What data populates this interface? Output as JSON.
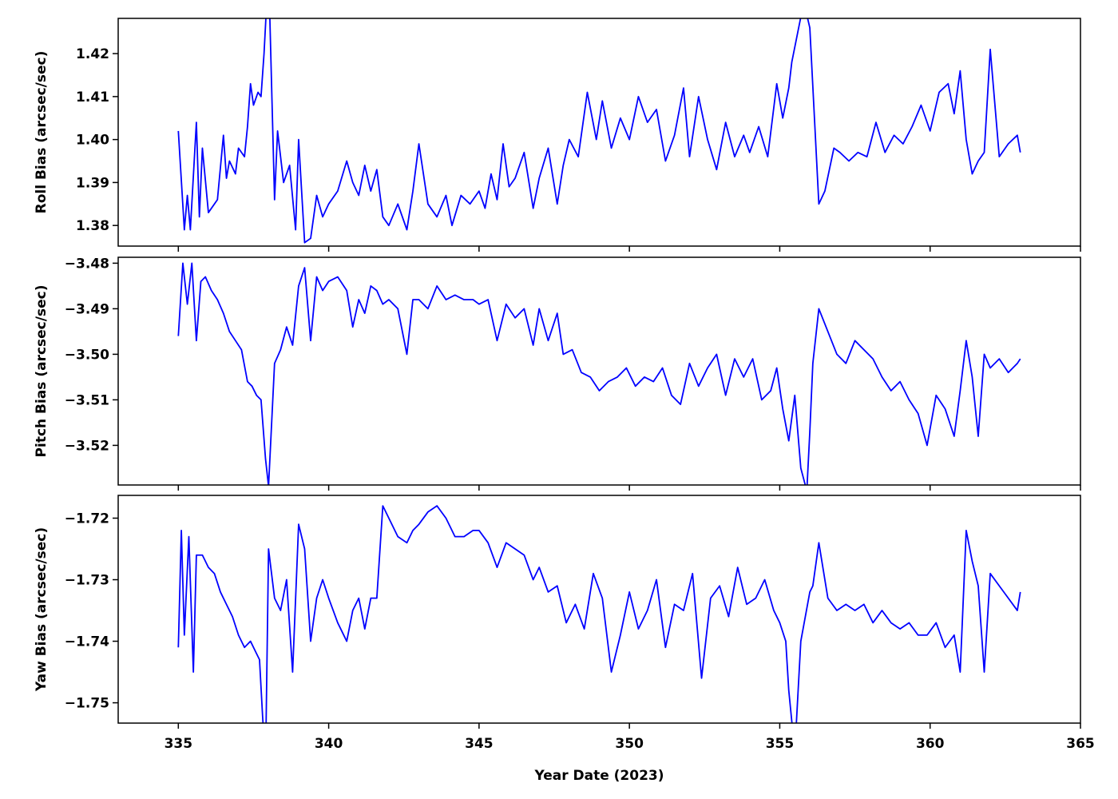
{
  "chart_data": [
    {
      "type": "line",
      "ylabel": "Roll Bias (arcsec/sec)",
      "xlim": [
        333,
        365
      ],
      "ylim": [
        1.3752,
        1.4282
      ],
      "y_ticks": [
        1.38,
        1.39,
        1.4,
        1.41,
        1.42
      ],
      "y_tick_labels": [
        "1.38",
        "1.39",
        "1.40",
        "1.41",
        "1.42"
      ],
      "series": [
        {
          "color": "#0000ff",
          "x": [
            335.0,
            335.2,
            335.3,
            335.4,
            335.6,
            335.7,
            335.8,
            336.0,
            336.3,
            336.5,
            336.6,
            336.7,
            336.9,
            337.0,
            337.2,
            337.3,
            337.4,
            337.5,
            337.65,
            337.75,
            337.85,
            338.0,
            338.2,
            338.3,
            338.5,
            338.7,
            338.9,
            339.0,
            339.2,
            339.4,
            339.6,
            339.8,
            340.0,
            340.3,
            340.6,
            340.8,
            341.0,
            341.2,
            341.4,
            341.6,
            341.8,
            342.0,
            342.3,
            342.6,
            342.8,
            343.0,
            343.3,
            343.6,
            343.9,
            344.1,
            344.4,
            344.7,
            345.0,
            345.2,
            345.4,
            345.6,
            345.8,
            346.0,
            346.2,
            346.5,
            346.8,
            347.0,
            347.3,
            347.6,
            347.8,
            348.0,
            348.3,
            348.6,
            348.9,
            349.1,
            349.4,
            349.7,
            350.0,
            350.3,
            350.6,
            350.9,
            351.2,
            351.5,
            351.8,
            352.0,
            352.3,
            352.6,
            352.9,
            353.2,
            353.5,
            353.8,
            354.0,
            354.3,
            354.6,
            354.9,
            355.1,
            355.3,
            355.4,
            355.6,
            355.8,
            356.0,
            356.3,
            356.5,
            356.8,
            357.0,
            357.3,
            357.6,
            357.9,
            358.2,
            358.5,
            358.8,
            359.1,
            359.4,
            359.7,
            360.0,
            360.3,
            360.6,
            360.8,
            361.0,
            361.2,
            361.4,
            361.6,
            361.8,
            362.0,
            362.3,
            362.6,
            362.9,
            363.0
          ],
          "y": [
            1.402,
            1.379,
            1.387,
            1.379,
            1.404,
            1.382,
            1.398,
            1.383,
            1.386,
            1.401,
            1.391,
            1.395,
            1.392,
            1.398,
            1.396,
            1.403,
            1.413,
            1.408,
            1.411,
            1.41,
            1.42,
            1.44,
            1.386,
            1.402,
            1.39,
            1.394,
            1.379,
            1.4,
            1.376,
            1.377,
            1.387,
            1.382,
            1.385,
            1.388,
            1.395,
            1.39,
            1.387,
            1.394,
            1.388,
            1.393,
            1.382,
            1.38,
            1.385,
            1.379,
            1.388,
            1.399,
            1.385,
            1.382,
            1.387,
            1.38,
            1.387,
            1.385,
            1.388,
            1.384,
            1.392,
            1.386,
            1.399,
            1.389,
            1.391,
            1.397,
            1.384,
            1.391,
            1.398,
            1.385,
            1.394,
            1.4,
            1.396,
            1.411,
            1.4,
            1.409,
            1.398,
            1.405,
            1.4,
            1.41,
            1.404,
            1.407,
            1.395,
            1.401,
            1.412,
            1.396,
            1.41,
            1.4,
            1.393,
            1.404,
            1.396,
            1.401,
            1.397,
            1.403,
            1.396,
            1.413,
            1.405,
            1.412,
            1.418,
            1.425,
            1.432,
            1.426,
            1.385,
            1.388,
            1.398,
            1.397,
            1.395,
            1.397,
            1.396,
            1.404,
            1.397,
            1.401,
            1.399,
            1.403,
            1.408,
            1.402,
            1.411,
            1.413,
            1.406,
            1.416,
            1.4,
            1.392,
            1.395,
            1.397,
            1.421,
            1.396,
            1.399,
            1.401,
            1.397
          ]
        }
      ]
    },
    {
      "type": "line",
      "ylabel": "Pitch Bias (arcsec/sec)",
      "xlim": [
        333,
        365
      ],
      "ylim": [
        -3.5287,
        -3.4787
      ],
      "y_ticks": [
        -3.52,
        -3.51,
        -3.5,
        -3.49,
        -3.48
      ],
      "y_tick_labels": [
        "−3.52",
        "−3.51",
        "−3.50",
        "−3.49",
        "−3.48"
      ],
      "series": [
        {
          "color": "#0000ff",
          "x": [
            335.0,
            335.15,
            335.3,
            335.45,
            335.6,
            335.75,
            335.9,
            336.1,
            336.3,
            336.5,
            336.7,
            336.9,
            337.1,
            337.3,
            337.45,
            337.6,
            337.75,
            337.9,
            338.0,
            338.2,
            338.4,
            338.6,
            338.8,
            339.0,
            339.2,
            339.4,
            339.6,
            339.8,
            340.0,
            340.3,
            340.6,
            340.8,
            341.0,
            341.2,
            341.4,
            341.6,
            341.8,
            342.0,
            342.3,
            342.6,
            342.8,
            343.0,
            343.3,
            343.6,
            343.9,
            344.2,
            344.5,
            344.8,
            345.0,
            345.3,
            345.6,
            345.9,
            346.2,
            346.5,
            346.8,
            347.0,
            347.3,
            347.6,
            347.8,
            348.1,
            348.4,
            348.7,
            349.0,
            349.3,
            349.6,
            349.9,
            350.2,
            350.5,
            350.8,
            351.1,
            351.4,
            351.7,
            352.0,
            352.3,
            352.6,
            352.9,
            353.2,
            353.5,
            353.8,
            354.1,
            354.4,
            354.7,
            354.9,
            355.1,
            355.3,
            355.5,
            355.7,
            355.9,
            356.0,
            356.1,
            356.3,
            356.6,
            356.9,
            357.2,
            357.5,
            357.8,
            358.1,
            358.4,
            358.7,
            359.0,
            359.3,
            359.6,
            359.9,
            360.2,
            360.5,
            360.8,
            361.0,
            361.2,
            361.4,
            361.6,
            361.8,
            362.0,
            362.3,
            362.6,
            362.9,
            363.0
          ],
          "y": [
            -3.496,
            -3.48,
            -3.489,
            -3.48,
            -3.497,
            -3.484,
            -3.483,
            -3.486,
            -3.488,
            -3.491,
            -3.495,
            -3.497,
            -3.499,
            -3.506,
            -3.507,
            -3.509,
            -3.51,
            -3.523,
            -3.529,
            -3.502,
            -3.499,
            -3.494,
            -3.498,
            -3.485,
            -3.481,
            -3.497,
            -3.483,
            -3.486,
            -3.484,
            -3.483,
            -3.486,
            -3.494,
            -3.488,
            -3.491,
            -3.485,
            -3.486,
            -3.489,
            -3.488,
            -3.49,
            -3.5,
            -3.488,
            -3.488,
            -3.49,
            -3.485,
            -3.488,
            -3.487,
            -3.488,
            -3.488,
            -3.489,
            -3.488,
            -3.497,
            -3.489,
            -3.492,
            -3.49,
            -3.498,
            -3.49,
            -3.497,
            -3.491,
            -3.5,
            -3.499,
            -3.504,
            -3.505,
            -3.508,
            -3.506,
            -3.505,
            -3.503,
            -3.507,
            -3.505,
            -3.506,
            -3.503,
            -3.509,
            -3.511,
            -3.502,
            -3.507,
            -3.503,
            -3.5,
            -3.509,
            -3.501,
            -3.505,
            -3.501,
            -3.51,
            -3.508,
            -3.503,
            -3.512,
            -3.519,
            -3.509,
            -3.525,
            -3.53,
            -3.517,
            -3.502,
            -3.49,
            -3.495,
            -3.5,
            -3.502,
            -3.497,
            -3.499,
            -3.501,
            -3.505,
            -3.508,
            -3.506,
            -3.51,
            -3.513,
            -3.52,
            -3.509,
            -3.512,
            -3.518,
            -3.508,
            -3.497,
            -3.505,
            -3.518,
            -3.5,
            -3.503,
            -3.501,
            -3.504,
            -3.502,
            -3.501
          ]
        }
      ]
    },
    {
      "type": "line",
      "ylabel": "Yaw Bias (arcsec/sec)",
      "xlim": [
        333,
        365
      ],
      "ylim": [
        -1.7533,
        -1.7163
      ],
      "y_ticks": [
        -1.75,
        -1.74,
        -1.73,
        -1.72
      ],
      "y_tick_labels": [
        "−1.75",
        "−1.74",
        "−1.73",
        "−1.72"
      ],
      "xlabel": "Year Date (2023)",
      "x_ticks": [
        335,
        340,
        345,
        350,
        355,
        360,
        365
      ],
      "x_tick_labels": [
        "335",
        "340",
        "345",
        "350",
        "355",
        "360",
        "365"
      ],
      "series": [
        {
          "color": "#0000ff",
          "x": [
            335.0,
            335.1,
            335.2,
            335.35,
            335.5,
            335.6,
            335.8,
            336.0,
            336.2,
            336.4,
            336.6,
            336.8,
            337.0,
            337.2,
            337.4,
            337.6,
            337.7,
            337.8,
            337.9,
            338.0,
            338.2,
            338.4,
            338.6,
            338.8,
            339.0,
            339.2,
            339.4,
            339.6,
            339.8,
            340.0,
            340.3,
            340.6,
            340.8,
            341.0,
            341.2,
            341.4,
            341.6,
            341.8,
            342.0,
            342.3,
            342.6,
            342.8,
            343.0,
            343.3,
            343.6,
            343.9,
            344.2,
            344.5,
            344.8,
            345.0,
            345.3,
            345.6,
            345.9,
            346.2,
            346.5,
            346.8,
            347.0,
            347.3,
            347.6,
            347.9,
            348.2,
            348.5,
            348.8,
            349.1,
            349.4,
            349.7,
            350.0,
            350.3,
            350.6,
            350.9,
            351.2,
            351.5,
            351.8,
            352.1,
            352.4,
            352.7,
            353.0,
            353.3,
            353.6,
            353.9,
            354.2,
            354.5,
            354.8,
            355.0,
            355.2,
            355.3,
            355.5,
            355.7,
            356.0,
            356.1,
            356.3,
            356.6,
            356.9,
            357.2,
            357.5,
            357.8,
            358.1,
            358.4,
            358.7,
            359.0,
            359.3,
            359.6,
            359.9,
            360.2,
            360.5,
            360.8,
            361.0,
            361.2,
            361.4,
            361.6,
            361.8,
            362.0,
            362.3,
            362.6,
            362.9,
            363.0
          ],
          "y": [
            -1.741,
            -1.722,
            -1.739,
            -1.723,
            -1.745,
            -1.726,
            -1.726,
            -1.728,
            -1.729,
            -1.732,
            -1.734,
            -1.736,
            -1.739,
            -1.741,
            -1.74,
            -1.742,
            -1.743,
            -1.752,
            -1.76,
            -1.725,
            -1.733,
            -1.735,
            -1.73,
            -1.745,
            -1.721,
            -1.725,
            -1.74,
            -1.733,
            -1.73,
            -1.733,
            -1.737,
            -1.74,
            -1.735,
            -1.733,
            -1.738,
            -1.733,
            -1.733,
            -1.718,
            -1.72,
            -1.723,
            -1.724,
            -1.722,
            -1.721,
            -1.719,
            -1.718,
            -1.72,
            -1.723,
            -1.723,
            -1.722,
            -1.722,
            -1.724,
            -1.728,
            -1.724,
            -1.725,
            -1.726,
            -1.73,
            -1.728,
            -1.732,
            -1.731,
            -1.737,
            -1.734,
            -1.738,
            -1.729,
            -1.733,
            -1.745,
            -1.739,
            -1.732,
            -1.738,
            -1.735,
            -1.73,
            -1.741,
            -1.734,
            -1.735,
            -1.729,
            -1.746,
            -1.733,
            -1.731,
            -1.736,
            -1.728,
            -1.734,
            -1.733,
            -1.73,
            -1.735,
            -1.737,
            -1.74,
            -1.748,
            -1.758,
            -1.74,
            -1.732,
            -1.731,
            -1.724,
            -1.733,
            -1.735,
            -1.734,
            -1.735,
            -1.734,
            -1.737,
            -1.735,
            -1.737,
            -1.738,
            -1.737,
            -1.739,
            -1.739,
            -1.737,
            -1.741,
            -1.739,
            -1.745,
            -1.722,
            -1.727,
            -1.731,
            -1.745,
            -1.729,
            -1.731,
            -1.733,
            -1.735,
            -1.732
          ]
        }
      ]
    }
  ]
}
